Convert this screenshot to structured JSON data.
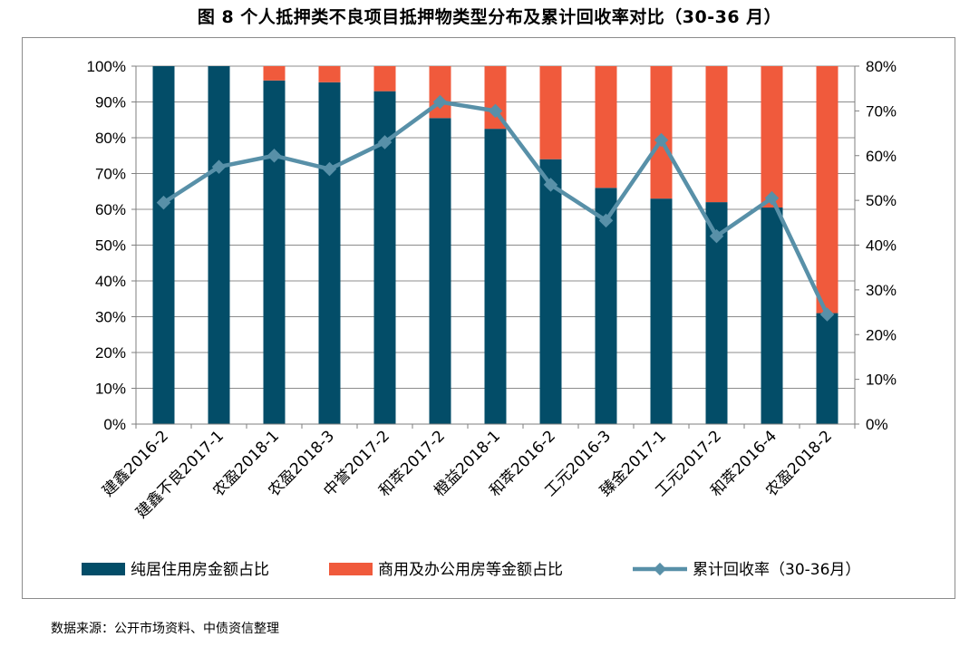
{
  "chart_data": {
    "type": "bar",
    "title": "图 8  个人抵押类不良项目抵押物类型分布及累计回收率对比（30-36 月）",
    "categories": [
      "建鑫2016-2",
      "建鑫不良2017-1",
      "农盈2018-1",
      "农盈2018-3",
      "中誉2017-2",
      "和萃2017-2",
      "橙益2018-1",
      "和萃2016-2",
      "工元2016-3",
      "臻金2017-1",
      "工元2017-2",
      "和萃2016-4",
      "农盈2018-2"
    ],
    "series": [
      {
        "name": "纯居住用房金额占比",
        "kind": "bar",
        "axis": "left",
        "color": "#034d68",
        "values": [
          100,
          100,
          96,
          95.5,
          93,
          85.5,
          82.5,
          74,
          66,
          63,
          62,
          60.5,
          31
        ]
      },
      {
        "name": "商用及办公用房等金额占比",
        "kind": "bar",
        "axis": "left",
        "color": "#f05a3c",
        "values": [
          0,
          0,
          4,
          4.5,
          7,
          14.5,
          17.5,
          26,
          34,
          37,
          38,
          39.5,
          69
        ]
      },
      {
        "name": "累计回收率（30-36月）",
        "kind": "line",
        "axis": "right",
        "color": "#5890a8",
        "values": [
          49.5,
          57.5,
          60,
          57,
          63,
          72,
          70,
          53.5,
          45.5,
          63.5,
          42,
          50.5,
          24.5
        ]
      }
    ],
    "stacked": true,
    "ylim_left": [
      0,
      100
    ],
    "ylim_right": [
      0,
      80
    ],
    "yticks_left": [
      "0%",
      "10%",
      "20%",
      "30%",
      "40%",
      "50%",
      "60%",
      "70%",
      "80%",
      "90%",
      "100%"
    ],
    "yticks_right": [
      "0%",
      "10%",
      "20%",
      "30%",
      "40%",
      "50%",
      "60%",
      "70%",
      "80%"
    ],
    "grid": true,
    "legend_position": "bottom"
  },
  "source_note": "数据来源：公开市场资料、中债资信整理"
}
